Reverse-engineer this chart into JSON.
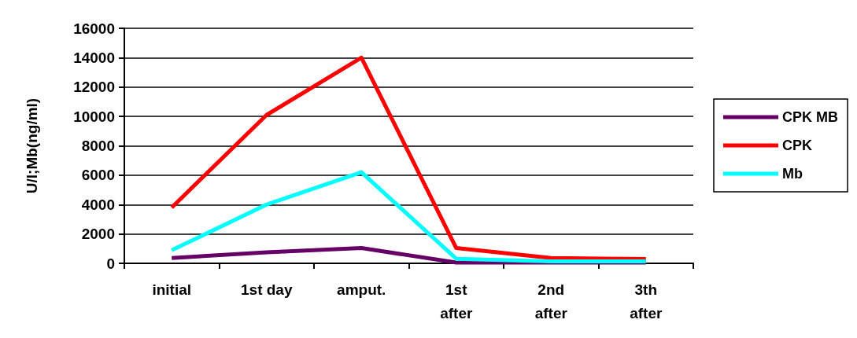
{
  "chart_data": {
    "type": "line",
    "ylabel": "U/l;Mb(ng/ml)",
    "categories": [
      "initial",
      "1st day",
      "amput.",
      "1st\nafter",
      "2nd\nafter",
      "3th\nafter"
    ],
    "series": [
      {
        "name": "CPK MB",
        "color": "#660066",
        "values": [
          360,
          750,
          1040,
          50,
          50,
          50
        ]
      },
      {
        "name": "CPK",
        "color": "#ff0000",
        "values": [
          3800,
          10100,
          14000,
          1040,
          360,
          290
        ]
      },
      {
        "name": "Mb",
        "color": "#00ffff",
        "values": [
          890,
          4000,
          6200,
          310,
          140,
          140
        ]
      }
    ],
    "ylim": [
      0,
      16000
    ],
    "yticks": [
      0,
      2000,
      4000,
      6000,
      8000,
      10000,
      12000,
      14000,
      16000
    ],
    "grid": "y",
    "legend": "right",
    "marker": "none",
    "line_style": "solid"
  }
}
